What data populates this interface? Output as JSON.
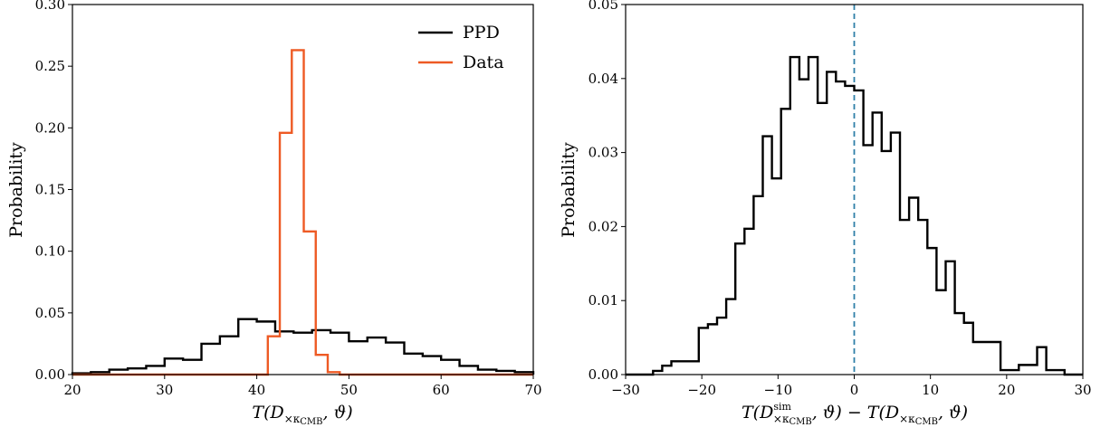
{
  "chart_data": [
    {
      "type": "histogram",
      "xlabel": "T(D×κCMB, ϑ)",
      "ylabel": "Probability",
      "xlim": [
        20,
        70
      ],
      "ylim": [
        0,
        0.3
      ],
      "xticks": [
        20,
        30,
        40,
        50,
        60,
        70
      ],
      "xtick_labels": [
        "20",
        "30",
        "40",
        "50",
        "60",
        "70"
      ],
      "yticks": [
        0,
        0.05,
        0.1,
        0.15,
        0.2,
        0.25,
        0.3
      ],
      "ytick_labels": [
        "0.00",
        "0.05",
        "0.10",
        "0.15",
        "0.20",
        "0.25",
        "0.30"
      ],
      "legend_position": "top-right",
      "series": [
        {
          "name": "PPD",
          "color": "#000000",
          "bin_edges": [
            20,
            22,
            24,
            26,
            28,
            30,
            32,
            34,
            36,
            38,
            40,
            42,
            44,
            46,
            48,
            50,
            52,
            54,
            56,
            58,
            60,
            62,
            64,
            66,
            68,
            70
          ],
          "values": [
            0.001,
            0.002,
            0.004,
            0.005,
            0.007,
            0.013,
            0.012,
            0.025,
            0.031,
            0.045,
            0.043,
            0.035,
            0.034,
            0.036,
            0.034,
            0.027,
            0.03,
            0.026,
            0.017,
            0.015,
            0.012,
            0.007,
            0.004,
            0.003,
            0.002
          ]
        },
        {
          "name": "Data",
          "color": "#ee5a24",
          "bin_edges": [
            20,
            41.2,
            42.5,
            43.8,
            45.1,
            46.4,
            47.7,
            49.0,
            70
          ],
          "values": [
            0.0,
            0.031,
            0.196,
            0.263,
            0.116,
            0.016,
            0.002,
            0.0
          ]
        }
      ]
    },
    {
      "type": "histogram",
      "xlabel": "T(Dsim×κCMB, ϑ) − T(D×κCMB, ϑ)",
      "ylabel": "Probability",
      "xlim": [
        -30,
        30
      ],
      "ylim": [
        0,
        0.05
      ],
      "xticks": [
        -30,
        -20,
        -10,
        0,
        10,
        20,
        30
      ],
      "xtick_labels": [
        "−30",
        "−20",
        "−10",
        "0",
        "10",
        "20",
        "30"
      ],
      "yticks": [
        0,
        0.01,
        0.02,
        0.03,
        0.04,
        0.05
      ],
      "ytick_labels": [
        "0.00",
        "0.01",
        "0.02",
        "0.03",
        "0.04",
        "0.05"
      ],
      "vline": {
        "x": 0,
        "color": "#2f7fa8",
        "style": "dashed"
      },
      "series": [
        {
          "color": "#000000",
          "bin_edges": [
            -30,
            -28.8,
            -27.6,
            -26.4,
            -25.2,
            -24.0,
            -22.8,
            -21.6,
            -20.4,
            -19.2,
            -18.0,
            -16.8,
            -15.6,
            -14.4,
            -13.2,
            -12.0,
            -10.8,
            -9.6,
            -8.4,
            -7.2,
            -6.0,
            -4.8,
            -3.6,
            -2.4,
            -1.2,
            0.0,
            1.2,
            2.4,
            3.6,
            4.8,
            6.0,
            7.2,
            8.4,
            9.6,
            10.8,
            12.0,
            13.2,
            14.4,
            15.6,
            16.8,
            18.0,
            19.2,
            20.4,
            21.6,
            22.8,
            24.0,
            25.2,
            26.4,
            27.6,
            28.8,
            30.0
          ],
          "values": [
            0.0,
            0.0,
            0.0,
            0.0005,
            0.0012,
            0.0018,
            0.0018,
            0.0018,
            0.0063,
            0.0068,
            0.0077,
            0.0102,
            0.0177,
            0.0197,
            0.0241,
            0.0322,
            0.0265,
            0.0359,
            0.0429,
            0.0399,
            0.0429,
            0.0367,
            0.0409,
            0.0396,
            0.039,
            0.0384,
            0.031,
            0.0354,
            0.0302,
            0.0327,
            0.0209,
            0.0239,
            0.0209,
            0.0171,
            0.0114,
            0.0153,
            0.0083,
            0.007,
            0.0044,
            0.0044,
            0.0044,
            0.0006,
            0.0006,
            0.0013,
            0.0013,
            0.0037,
            0.0006,
            0.0006,
            0.0,
            0.0
          ]
        }
      ]
    }
  ]
}
